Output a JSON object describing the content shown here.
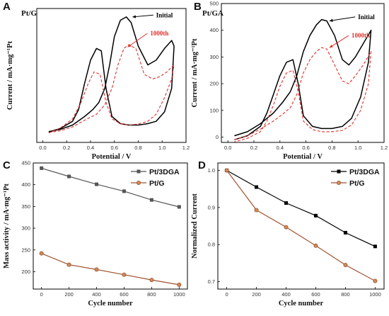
{
  "colors": {
    "axis": "#000000",
    "initial": "#000000",
    "after": "#e0302a",
    "pt3dga": "#555555",
    "ptg": "#a0522d",
    "ptg_marker_fill": "#cd8a5c",
    "series_black": "#000000"
  },
  "chart_data": [
    {
      "panel": "A",
      "title": "Pt/G",
      "type": "line",
      "xlabel": "Potential / V",
      "ylabel": "Current / mA·mg⁻¹Pt",
      "xlim": [
        -0.05,
        1.2
      ],
      "ylim": [
        -25,
        260
      ],
      "xticks": [
        0.0,
        0.2,
        0.4,
        0.6,
        0.8,
        1.0,
        1.2
      ],
      "yticks": [],
      "grid": false,
      "series": [
        {
          "name": "Initial",
          "style": "solid",
          "x": [
            0.05,
            0.15,
            0.25,
            0.35,
            0.42,
            0.47,
            0.52,
            0.56,
            0.6,
            0.65,
            0.7,
            0.74,
            0.8,
            0.88,
            0.95,
            1.02,
            1.08,
            1.1,
            1.08,
            1.02,
            0.95,
            0.88,
            0.8,
            0.72,
            0.65,
            0.58,
            0.53,
            0.49,
            0.45,
            0.4,
            0.35,
            0.3,
            0.25,
            0.15,
            0.05
          ],
          "y": [
            -2,
            3,
            12,
            30,
            45,
            60,
            90,
            140,
            200,
            235,
            242,
            230,
            180,
            140,
            150,
            175,
            192,
            180,
            90,
            40,
            20,
            15,
            12,
            12,
            15,
            30,
            90,
            170,
            175,
            150,
            100,
            45,
            20,
            5,
            -3
          ]
        },
        {
          "name": "1000th",
          "style": "dashed",
          "x": [
            0.05,
            0.15,
            0.25,
            0.35,
            0.45,
            0.52,
            0.58,
            0.63,
            0.68,
            0.72,
            0.78,
            0.85,
            0.92,
            0.98,
            1.04,
            1.1,
            1.08,
            1.02,
            0.95,
            0.88,
            0.8,
            0.72,
            0.65,
            0.58,
            0.53,
            0.48,
            0.43,
            0.38,
            0.32,
            0.25,
            0.15,
            0.05
          ],
          "y": [
            -4,
            0,
            8,
            22,
            35,
            55,
            90,
            140,
            175,
            183,
            175,
            120,
            110,
            115,
            125,
            140,
            110,
            70,
            35,
            20,
            14,
            12,
            15,
            25,
            60,
            120,
            125,
            100,
            60,
            25,
            6,
            -5
          ]
        }
      ],
      "annotations": [
        {
          "text": "Initial",
          "color": "black",
          "x": 0.74,
          "y": 242,
          "tx": 0.95,
          "ty": 246
        },
        {
          "text": "1000th",
          "color": "red",
          "x": 0.7,
          "y": 178,
          "tx": 0.9,
          "ty": 207
        }
      ]
    },
    {
      "panel": "B",
      "title": "Pt/GA",
      "type": "line",
      "xlabel": "Potential / V",
      "ylabel": "Current / mA·mg⁻¹Pt",
      "xlim": [
        -0.05,
        1.2
      ],
      "ylim": [
        -20,
        500
      ],
      "xticks": [
        0.0,
        0.2,
        0.4,
        0.6,
        0.8,
        1.0,
        1.2
      ],
      "yticks": [
        0,
        100,
        200,
        300,
        400,
        500
      ],
      "grid": false,
      "series": [
        {
          "name": "Initial",
          "style": "solid",
          "x": [
            0.05,
            0.15,
            0.25,
            0.35,
            0.42,
            0.48,
            0.53,
            0.58,
            0.63,
            0.68,
            0.72,
            0.76,
            0.82,
            0.88,
            0.93,
            0.98,
            1.04,
            1.1,
            1.08,
            1.02,
            0.95,
            0.88,
            0.8,
            0.72,
            0.65,
            0.58,
            0.54,
            0.5,
            0.45,
            0.4,
            0.35,
            0.3,
            0.25,
            0.15,
            0.05
          ],
          "y": [
            5,
            20,
            50,
            90,
            130,
            170,
            230,
            320,
            380,
            420,
            440,
            435,
            380,
            290,
            270,
            300,
            350,
            400,
            280,
            150,
            70,
            40,
            32,
            32,
            40,
            80,
            200,
            290,
            280,
            230,
            160,
            90,
            40,
            5,
            -10
          ]
        },
        {
          "name": "1000th",
          "style": "dashed",
          "x": [
            0.05,
            0.15,
            0.25,
            0.35,
            0.42,
            0.48,
            0.53,
            0.58,
            0.63,
            0.68,
            0.72,
            0.76,
            0.82,
            0.88,
            0.93,
            0.98,
            1.04,
            1.1,
            1.08,
            1.02,
            0.95,
            0.88,
            0.8,
            0.72,
            0.65,
            0.58,
            0.54,
            0.5,
            0.45,
            0.4,
            0.35,
            0.3,
            0.25,
            0.15,
            0.05
          ],
          "y": [
            -10,
            5,
            30,
            60,
            85,
            110,
            160,
            240,
            290,
            320,
            335,
            330,
            270,
            210,
            200,
            230,
            270,
            320,
            200,
            100,
            45,
            25,
            20,
            20,
            28,
            60,
            170,
            250,
            240,
            190,
            120,
            60,
            20,
            -5,
            -18
          ]
        }
      ],
      "annotations": [
        {
          "text": "Initial",
          "color": "black",
          "x": 0.77,
          "y": 435,
          "tx": 1.0,
          "ty": 450
        },
        {
          "text": "1000th",
          "color": "red",
          "x": 0.77,
          "y": 335,
          "tx": 0.95,
          "ty": 380
        }
      ]
    },
    {
      "panel": "C",
      "type": "line",
      "xlabel": "Cycle number",
      "ylabel": "Mass activity / mA·mg⁻¹Pt",
      "xlim": [
        -60,
        1060
      ],
      "ylim": [
        160,
        450
      ],
      "xticks": [
        0,
        200,
        400,
        600,
        800,
        1000
      ],
      "yticks": [
        200,
        250,
        300,
        350,
        400,
        450
      ],
      "grid": false,
      "legend_position": "top-right",
      "series": [
        {
          "name": "Pt/3DGA",
          "marker": "square",
          "x": [
            0,
            200,
            400,
            600,
            800,
            1000
          ],
          "y": [
            438,
            419,
            401,
            385,
            365,
            349
          ]
        },
        {
          "name": "Pt/G",
          "marker": "circle",
          "x": [
            0,
            200,
            400,
            600,
            800,
            1000
          ],
          "y": [
            242,
            216,
            205,
            193,
            181,
            170
          ]
        }
      ]
    },
    {
      "panel": "D",
      "type": "line",
      "xlabel": "Cycle number",
      "ylabel": "Normalized Current",
      "xlim": [
        -60,
        1060
      ],
      "ylim": [
        0.68,
        1.02
      ],
      "xticks": [
        0,
        200,
        400,
        600,
        800,
        1000
      ],
      "yticks": [
        0.7,
        0.8,
        0.9,
        1.0
      ],
      "grid": false,
      "legend_position": "top-right",
      "series": [
        {
          "name": "Pt/3DGA",
          "marker": "square",
          "x": [
            0,
            200,
            400,
            600,
            800,
            1000
          ],
          "y": [
            1.0,
            0.955,
            0.912,
            0.878,
            0.832,
            0.795
          ]
        },
        {
          "name": "Pt/G",
          "marker": "circle",
          "x": [
            0,
            200,
            400,
            600,
            800,
            1000
          ],
          "y": [
            1.0,
            0.893,
            0.847,
            0.797,
            0.745,
            0.702
          ]
        }
      ]
    }
  ]
}
